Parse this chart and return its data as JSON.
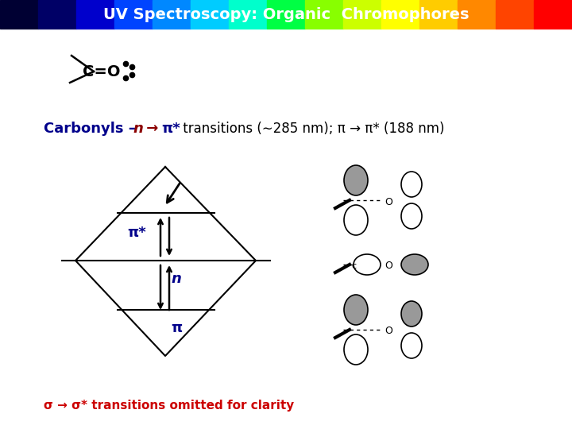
{
  "title": "UV Spectroscopy: Organic  Chromophores",
  "background_color": "#ffffff",
  "bottom_text": "σ → σ* transitions omitted for clarity",
  "bottom_text_color": "#cc0000",
  "pi_star_label": "π*",
  "n_label": "n",
  "pi_label": "π",
  "label_color": "#00008B",
  "gradient_colors": [
    "#000033",
    "#000066",
    "#0000cc",
    "#0044ff",
    "#0088ff",
    "#00ccff",
    "#00ffcc",
    "#00ff44",
    "#88ff00",
    "#ccff00",
    "#ffff00",
    "#ffcc00",
    "#ff8800",
    "#ff4400",
    "#ff0000",
    "#cc0000"
  ]
}
